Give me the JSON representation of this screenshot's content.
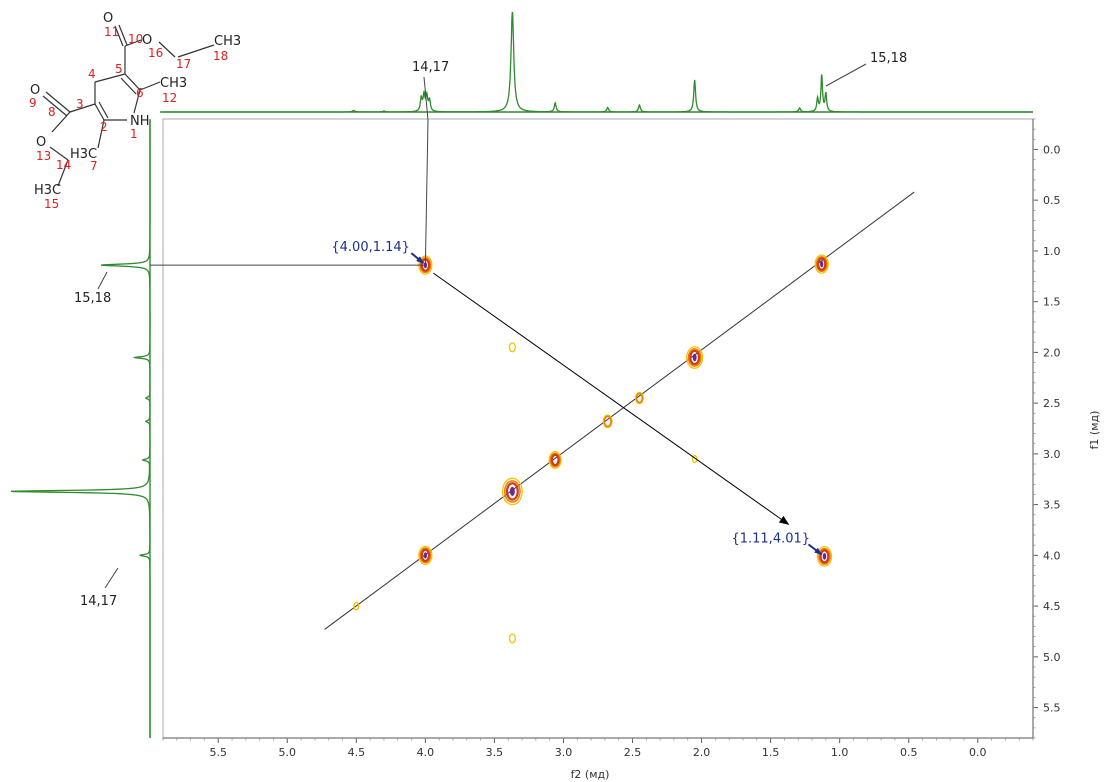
{
  "colors": {
    "spectrum": "#2e8b2e",
    "frame": "#aaaaaa",
    "diagonal": "#333333",
    "contour_outer": "#f2c200",
    "contour_mid": "#ee7a00",
    "contour_inner": "#d23a1a",
    "contour_core": "#6a2a8a",
    "atom_number": "#e02020",
    "peak_label": "#1e2f8c"
  },
  "chart_data": {
    "type": "2D NMR COSY contour plot",
    "xlabel": "f2 (мд)",
    "ylabel": "f1 (мд)",
    "x_axis": {
      "range": [
        5.9,
        -0.4
      ],
      "reversed": true,
      "ticks": [
        5.5,
        5.0,
        4.5,
        4.0,
        3.5,
        3.0,
        2.5,
        2.0,
        1.5,
        1.0,
        0.5,
        0.0
      ],
      "tick_labels": [
        "5.5",
        "5.0",
        "4.5",
        "4.0",
        "3.5",
        "3.0",
        "2.5",
        "2.0",
        "1.5",
        "1.0",
        "0.5",
        "0.0"
      ]
    },
    "y_axis": {
      "range": [
        -0.3,
        5.8
      ],
      "reversed": true,
      "position": "right",
      "ticks": [
        0.0,
        0.5,
        1.0,
        1.5,
        2.0,
        2.5,
        3.0,
        3.5,
        4.0,
        4.5,
        5.0,
        5.5
      ],
      "tick_labels": [
        "0.0",
        "0.5",
        "1.0",
        "1.5",
        "2.0",
        "2.5",
        "3.0",
        "3.5",
        "4.0",
        "4.5",
        "5.0",
        "5.5"
      ]
    },
    "grid": false,
    "diagonal": {
      "from": [
        4.73,
        4.73
      ],
      "to": [
        0.46,
        0.42
      ]
    },
    "peaks": [
      {
        "x": 4.0,
        "y": 1.14,
        "size": 1.0,
        "type": "cross"
      },
      {
        "x": 1.11,
        "y": 4.01,
        "size": 1.1,
        "type": "cross"
      },
      {
        "x": 1.13,
        "y": 1.13,
        "size": 1.0,
        "type": "diagonal"
      },
      {
        "x": 2.05,
        "y": 2.05,
        "size": 1.25,
        "type": "diagonal"
      },
      {
        "x": 2.45,
        "y": 2.45,
        "size": 0.5,
        "type": "diagonal"
      },
      {
        "x": 2.68,
        "y": 2.68,
        "size": 0.6,
        "type": "diagonal"
      },
      {
        "x": 3.06,
        "y": 3.06,
        "size": 0.9,
        "type": "diagonal"
      },
      {
        "x": 3.37,
        "y": 3.37,
        "size": 1.6,
        "type": "diagonal"
      },
      {
        "x": 4.0,
        "y": 4.0,
        "size": 1.0,
        "type": "diagonal"
      },
      {
        "x": 4.5,
        "y": 4.5,
        "size": 0.25,
        "type": "weak"
      },
      {
        "x": 3.37,
        "y": 1.95,
        "size": 0.35,
        "type": "weak"
      },
      {
        "x": 3.37,
        "y": 4.82,
        "size": 0.35,
        "type": "weak"
      },
      {
        "x": 2.05,
        "y": 3.05,
        "size": 0.2,
        "type": "weak"
      }
    ],
    "f2_projection": [
      {
        "x": 4.52,
        "h": 0.015,
        "w": 0.01
      },
      {
        "x": 4.3,
        "h": 0.01,
        "w": 0.01
      },
      {
        "x": 4.03,
        "h": 0.13,
        "w": 0.008
      },
      {
        "x": 4.01,
        "h": 0.16,
        "w": 0.008
      },
      {
        "x": 3.99,
        "h": 0.15,
        "w": 0.008
      },
      {
        "x": 3.97,
        "h": 0.11,
        "w": 0.008
      },
      {
        "x": 3.37,
        "h": 1.0,
        "w": 0.012
      },
      {
        "x": 3.06,
        "h": 0.09,
        "w": 0.008
      },
      {
        "x": 2.68,
        "h": 0.045,
        "w": 0.008
      },
      {
        "x": 2.45,
        "h": 0.07,
        "w": 0.008
      },
      {
        "x": 2.05,
        "h": 0.32,
        "w": 0.008
      },
      {
        "x": 1.29,
        "h": 0.04,
        "w": 0.008
      },
      {
        "x": 1.16,
        "h": 0.13,
        "w": 0.007
      },
      {
        "x": 1.13,
        "h": 0.36,
        "w": 0.007
      },
      {
        "x": 1.1,
        "h": 0.18,
        "w": 0.007
      }
    ],
    "f1_projection": [
      {
        "y": 1.14,
        "h": 0.35,
        "w": 0.012
      },
      {
        "y": 2.05,
        "h": 0.11,
        "w": 0.01
      },
      {
        "y": 2.45,
        "h": 0.03,
        "w": 0.01
      },
      {
        "y": 2.68,
        "h": 0.03,
        "w": 0.01
      },
      {
        "y": 3.06,
        "h": 0.05,
        "w": 0.01
      },
      {
        "y": 3.37,
        "h": 1.0,
        "w": 0.012
      },
      {
        "y": 4.0,
        "h": 0.07,
        "w": 0.01
      }
    ],
    "peak_labels": [
      {
        "text": "{4.00,1.14}",
        "x": 4.0,
        "y": 1.14
      },
      {
        "text": "{1.11,4.01}",
        "x": 1.11,
        "y": 4.01
      }
    ],
    "assignment_labels": [
      "14,17",
      "15,18",
      "15,18",
      "14,17"
    ]
  },
  "molecule": {
    "atoms": [
      "O",
      "O",
      "O",
      "O",
      "NH",
      "CH3",
      "CH3",
      "H3C",
      "H3C"
    ],
    "atom_numbers": [
      "1",
      "2",
      "3",
      "4",
      "5",
      "6",
      "7",
      "8",
      "9",
      "10",
      "11",
      "12",
      "13",
      "14",
      "15",
      "16",
      "17",
      "18"
    ]
  }
}
